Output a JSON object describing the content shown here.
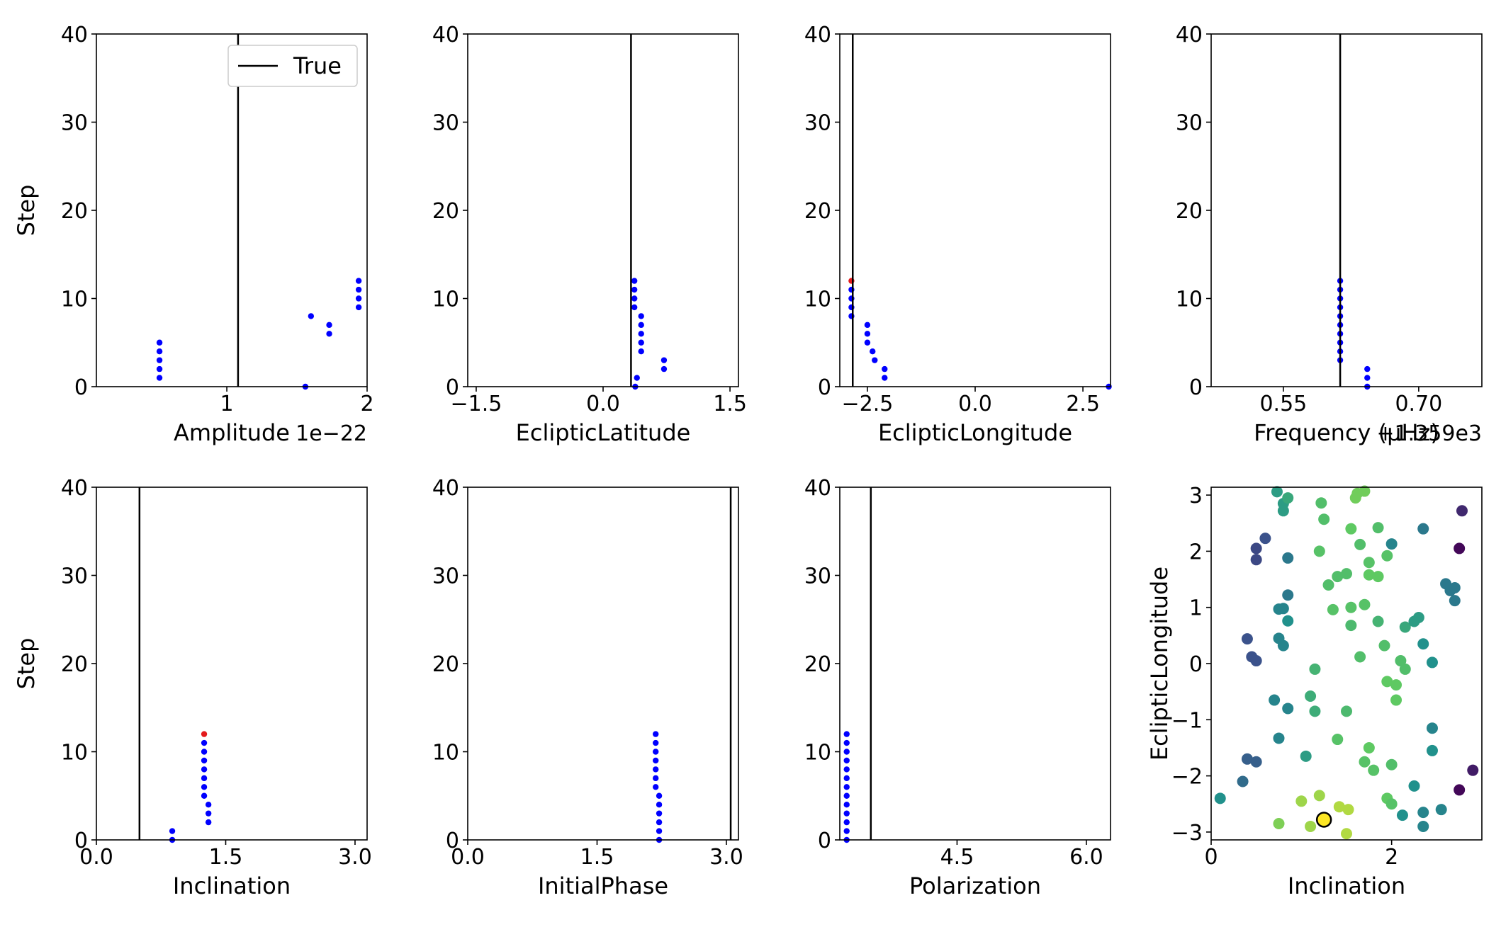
{
  "figure": {
    "background": "#ffffff",
    "colors": {
      "frame": "#000000",
      "true_line": "#000000",
      "trace": "#0000ff",
      "current": "#e31a1c"
    }
  },
  "chart_data": [
    {
      "type": "scatter",
      "xlabel": "Amplitude",
      "ylabel": "Step",
      "x_offset_label": "1e−22",
      "xlim": [
        0.07,
        2.0
      ],
      "ylim": [
        0,
        40
      ],
      "xticks": [
        1,
        2
      ],
      "xtick_labels": [
        "1",
        "2"
      ],
      "yticks": [
        0,
        10,
        20,
        30,
        40
      ],
      "ytick_labels": [
        "0",
        "10",
        "20",
        "30",
        "40"
      ],
      "true_value": 1.08,
      "legend": {
        "entries": [
          "True"
        ],
        "placement": "upper right"
      },
      "points": [
        [
          0.52,
          1
        ],
        [
          0.52,
          2
        ],
        [
          0.52,
          3
        ],
        [
          0.52,
          4
        ],
        [
          0.52,
          5
        ],
        [
          1.56,
          0
        ],
        [
          1.6,
          8
        ],
        [
          1.73,
          6
        ],
        [
          1.73,
          7
        ],
        [
          1.94,
          9
        ],
        [
          1.94,
          10
        ],
        [
          1.94,
          11
        ],
        [
          1.94,
          12
        ]
      ],
      "current_point": null
    },
    {
      "type": "scatter",
      "xlabel": "EclipticLatitude",
      "ylabel": "",
      "x_offset_label": "",
      "xlim": [
        -1.6,
        1.6
      ],
      "ylim": [
        0,
        40
      ],
      "xticks": [
        -1.5,
        0.0,
        1.5
      ],
      "xtick_labels": [
        "−1.5",
        "0.0",
        "1.5"
      ],
      "yticks": [
        0,
        10,
        20,
        30,
        40
      ],
      "ytick_labels": [
        "0",
        "10",
        "20",
        "30",
        "40"
      ],
      "true_value": 0.33,
      "legend": null,
      "points": [
        [
          0.38,
          0
        ],
        [
          0.4,
          1
        ],
        [
          0.72,
          2
        ],
        [
          0.72,
          3
        ],
        [
          0.45,
          4
        ],
        [
          0.45,
          5
        ],
        [
          0.45,
          6
        ],
        [
          0.45,
          7
        ],
        [
          0.45,
          8
        ],
        [
          0.37,
          9
        ],
        [
          0.37,
          10
        ],
        [
          0.37,
          11
        ],
        [
          0.37,
          12
        ]
      ],
      "current_point": null
    },
    {
      "type": "scatter",
      "xlabel": "EclipticLongitude",
      "ylabel": "",
      "x_offset_label": "",
      "xlim": [
        -3.14,
        3.14
      ],
      "ylim": [
        0,
        40
      ],
      "xticks": [
        -2.5,
        0.0,
        2.5
      ],
      "xtick_labels": [
        "−2.5",
        "0.0",
        "2.5"
      ],
      "yticks": [
        0,
        10,
        20,
        30,
        40
      ],
      "ytick_labels": [
        "0",
        "10",
        "20",
        "30",
        "40"
      ],
      "true_value": -2.84,
      "legend": null,
      "points": [
        [
          3.1,
          0
        ],
        [
          -2.1,
          1
        ],
        [
          -2.1,
          2
        ],
        [
          -2.33,
          3
        ],
        [
          -2.38,
          4
        ],
        [
          -2.5,
          5
        ],
        [
          -2.5,
          6
        ],
        [
          -2.5,
          7
        ],
        [
          -2.87,
          8
        ],
        [
          -2.87,
          9
        ],
        [
          -2.87,
          10
        ],
        [
          -2.87,
          11
        ]
      ],
      "current_point": [
        -2.87,
        12
      ]
    },
    {
      "type": "scatter",
      "xlabel": "Frequency ($μ$Hz)",
      "ylabel": "",
      "x_offset_label": "+1.359e3",
      "xlim": [
        0.47,
        0.77
      ],
      "ylim": [
        0,
        40
      ],
      "xticks": [
        0.55,
        0.7
      ],
      "xtick_labels": [
        "0.55",
        "0.70"
      ],
      "yticks": [
        0,
        10,
        20,
        30,
        40
      ],
      "ytick_labels": [
        "0",
        "10",
        "20",
        "30",
        "40"
      ],
      "true_value": 0.613,
      "legend": null,
      "points": [
        [
          0.643,
          0
        ],
        [
          0.643,
          1
        ],
        [
          0.643,
          2
        ],
        [
          0.613,
          3
        ],
        [
          0.613,
          4
        ],
        [
          0.613,
          5
        ],
        [
          0.613,
          6
        ],
        [
          0.613,
          7
        ],
        [
          0.613,
          8
        ],
        [
          0.613,
          9
        ],
        [
          0.613,
          10
        ],
        [
          0.613,
          11
        ],
        [
          0.613,
          12
        ]
      ],
      "current_point": null
    },
    {
      "type": "scatter",
      "xlabel": "Inclination",
      "ylabel": "Step",
      "x_offset_label": "",
      "xlim": [
        0.0,
        3.14
      ],
      "ylim": [
        0,
        40
      ],
      "xticks": [
        0.0,
        1.5,
        3.0
      ],
      "xtick_labels": [
        "0.0",
        "1.5",
        "3.0"
      ],
      "yticks": [
        0,
        10,
        20,
        30,
        40
      ],
      "ytick_labels": [
        "0",
        "10",
        "20",
        "30",
        "40"
      ],
      "true_value": 0.5,
      "legend": null,
      "points": [
        [
          0.88,
          0
        ],
        [
          0.88,
          1
        ],
        [
          1.3,
          2
        ],
        [
          1.3,
          3
        ],
        [
          1.3,
          4
        ],
        [
          1.25,
          5
        ],
        [
          1.25,
          6
        ],
        [
          1.25,
          7
        ],
        [
          1.25,
          8
        ],
        [
          1.25,
          9
        ],
        [
          1.25,
          10
        ],
        [
          1.25,
          11
        ]
      ],
      "current_point": [
        1.25,
        12
      ]
    },
    {
      "type": "scatter",
      "xlabel": "InitialPhase",
      "ylabel": "",
      "x_offset_label": "",
      "xlim": [
        0.0,
        3.14
      ],
      "ylim": [
        0,
        40
      ],
      "xticks": [
        0.0,
        1.5,
        3.0
      ],
      "xtick_labels": [
        "0.0",
        "1.5",
        "3.0"
      ],
      "yticks": [
        0,
        10,
        20,
        30,
        40
      ],
      "ytick_labels": [
        "0",
        "10",
        "20",
        "30",
        "40"
      ],
      "true_value": 3.05,
      "legend": null,
      "points": [
        [
          2.22,
          0
        ],
        [
          2.22,
          1
        ],
        [
          2.22,
          2
        ],
        [
          2.22,
          3
        ],
        [
          2.22,
          4
        ],
        [
          2.22,
          5
        ],
        [
          2.18,
          6
        ],
        [
          2.18,
          7
        ],
        [
          2.18,
          8
        ],
        [
          2.18,
          9
        ],
        [
          2.18,
          10
        ],
        [
          2.18,
          11
        ],
        [
          2.18,
          12
        ]
      ],
      "current_point": null
    },
    {
      "type": "scatter",
      "xlabel": "Polarization",
      "ylabel": "",
      "x_offset_label": "",
      "xlim": [
        3.14,
        6.28
      ],
      "ylim": [
        0,
        40
      ],
      "xticks": [
        4.5,
        6.0
      ],
      "xtick_labels": [
        "4.5",
        "6.0"
      ],
      "yticks": [
        0,
        10,
        20,
        30,
        40
      ],
      "ytick_labels": [
        "0",
        "10",
        "20",
        "30",
        "40"
      ],
      "true_value": 3.5,
      "legend": null,
      "points": [
        [
          3.22,
          0
        ],
        [
          3.22,
          1
        ],
        [
          3.22,
          2
        ],
        [
          3.22,
          3
        ],
        [
          3.22,
          4
        ],
        [
          3.22,
          5
        ],
        [
          3.22,
          6
        ],
        [
          3.22,
          7
        ],
        [
          3.22,
          8
        ],
        [
          3.22,
          9
        ],
        [
          3.22,
          10
        ],
        [
          3.22,
          11
        ],
        [
          3.22,
          12
        ]
      ],
      "current_point": null
    },
    {
      "type": "scatter",
      "xlabel": "Inclination",
      "ylabel": "EclipticLongitude",
      "x_offset_label": "",
      "xlim": [
        0.0,
        3.0
      ],
      "ylim": [
        -3.14,
        3.14
      ],
      "xticks": [
        0,
        2
      ],
      "xtick_labels": [
        "0",
        "2"
      ],
      "yticks": [
        -3,
        -2,
        -1,
        0,
        1,
        2,
        3
      ],
      "ytick_labels": [
        "−3",
        "−2",
        "−1",
        "0",
        "1",
        "2",
        "3"
      ],
      "colormap": [
        "#440154",
        "#3b528b",
        "#21918c",
        "#5ec962",
        "#fde725"
      ],
      "points": [
        [
          0.73,
          3.06,
          0.55
        ],
        [
          0.8,
          2.85,
          0.55
        ],
        [
          0.85,
          2.95,
          0.6
        ],
        [
          0.8,
          2.72,
          0.55
        ],
        [
          1.22,
          2.86,
          0.7
        ],
        [
          1.25,
          2.57,
          0.7
        ],
        [
          1.62,
          3.03,
          0.78
        ],
        [
          1.7,
          3.07,
          0.78
        ],
        [
          1.6,
          2.95,
          0.78
        ],
        [
          0.6,
          2.23,
          0.25
        ],
        [
          0.5,
          2.05,
          0.22
        ],
        [
          0.5,
          1.85,
          0.22
        ],
        [
          1.2,
          2.0,
          0.72
        ],
        [
          1.55,
          2.4,
          0.75
        ],
        [
          1.85,
          2.42,
          0.7
        ],
        [
          2.0,
          2.13,
          0.45
        ],
        [
          2.35,
          2.4,
          0.4
        ],
        [
          2.78,
          2.72,
          0.12
        ],
        [
          0.85,
          1.88,
          0.4
        ],
        [
          1.65,
          2.12,
          0.7
        ],
        [
          1.75,
          1.8,
          0.72
        ],
        [
          1.95,
          1.92,
          0.72
        ],
        [
          2.75,
          2.05,
          0.02
        ],
        [
          0.85,
          1.22,
          0.4
        ],
        [
          1.3,
          1.4,
          0.7
        ],
        [
          1.4,
          1.55,
          0.7
        ],
        [
          1.5,
          1.6,
          0.7
        ],
        [
          1.75,
          1.58,
          0.75
        ],
        [
          1.85,
          1.55,
          0.75
        ],
        [
          0.75,
          0.97,
          0.45
        ],
        [
          0.8,
          0.98,
          0.45
        ],
        [
          0.85,
          0.76,
          0.5
        ],
        [
          1.35,
          0.96,
          0.72
        ],
        [
          1.55,
          1.0,
          0.72
        ],
        [
          1.7,
          1.05,
          0.72
        ],
        [
          1.55,
          0.68,
          0.68
        ],
        [
          1.85,
          0.75,
          0.65
        ],
        [
          2.15,
          0.65,
          0.6
        ],
        [
          2.25,
          0.75,
          0.55
        ],
        [
          2.3,
          0.82,
          0.55
        ],
        [
          2.6,
          1.42,
          0.4
        ],
        [
          2.65,
          1.3,
          0.4
        ],
        [
          2.7,
          1.35,
          0.4
        ],
        [
          2.7,
          1.12,
          0.4
        ],
        [
          0.4,
          0.44,
          0.25
        ],
        [
          0.45,
          0.12,
          0.25
        ],
        [
          0.5,
          0.05,
          0.25
        ],
        [
          0.75,
          0.45,
          0.45
        ],
        [
          0.8,
          0.32,
          0.45
        ],
        [
          1.15,
          -0.1,
          0.65
        ],
        [
          1.65,
          0.12,
          0.7
        ],
        [
          1.92,
          0.32,
          0.7
        ],
        [
          2.1,
          0.05,
          0.7
        ],
        [
          2.15,
          -0.1,
          0.7
        ],
        [
          2.35,
          0.35,
          0.5
        ],
        [
          2.45,
          0.02,
          0.5
        ],
        [
          0.7,
          -0.65,
          0.45
        ],
        [
          0.85,
          -0.8,
          0.45
        ],
        [
          1.1,
          -0.58,
          0.62
        ],
        [
          1.15,
          -0.85,
          0.62
        ],
        [
          1.95,
          -0.32,
          0.75
        ],
        [
          2.05,
          -0.38,
          0.75
        ],
        [
          2.05,
          -0.65,
          0.75
        ],
        [
          1.5,
          -0.85,
          0.68
        ],
        [
          2.45,
          -1.15,
          0.45
        ],
        [
          0.75,
          -1.33,
          0.45
        ],
        [
          1.05,
          -1.65,
          0.55
        ],
        [
          1.4,
          -1.35,
          0.72
        ],
        [
          1.75,
          -1.5,
          0.75
        ],
        [
          1.7,
          -1.75,
          0.72
        ],
        [
          1.8,
          -1.9,
          0.72
        ],
        [
          2.0,
          -1.8,
          0.7
        ],
        [
          2.45,
          -1.55,
          0.5
        ],
        [
          0.4,
          -1.7,
          0.3
        ],
        [
          0.5,
          -1.75,
          0.3
        ],
        [
          0.35,
          -2.1,
          0.35
        ],
        [
          2.25,
          -2.18,
          0.5
        ],
        [
          2.55,
          -2.6,
          0.45
        ],
        [
          2.75,
          -2.25,
          0.02
        ],
        [
          2.9,
          -1.9,
          0.08
        ],
        [
          0.1,
          -2.4,
          0.5
        ],
        [
          0.75,
          -2.85,
          0.8
        ],
        [
          1.0,
          -2.45,
          0.85
        ],
        [
          1.1,
          -2.9,
          0.85
        ],
        [
          1.2,
          -2.35,
          0.85
        ],
        [
          1.42,
          -2.55,
          0.88
        ],
        [
          1.52,
          -2.6,
          0.88
        ],
        [
          1.5,
          -3.03,
          0.88
        ],
        [
          1.95,
          -2.4,
          0.75
        ],
        [
          2.0,
          -2.5,
          0.72
        ],
        [
          2.12,
          -2.7,
          0.5
        ],
        [
          2.35,
          -2.65,
          0.45
        ],
        [
          2.35,
          -2.9,
          0.45
        ]
      ],
      "highlight": [
        1.25,
        -2.78,
        1.0
      ]
    }
  ]
}
